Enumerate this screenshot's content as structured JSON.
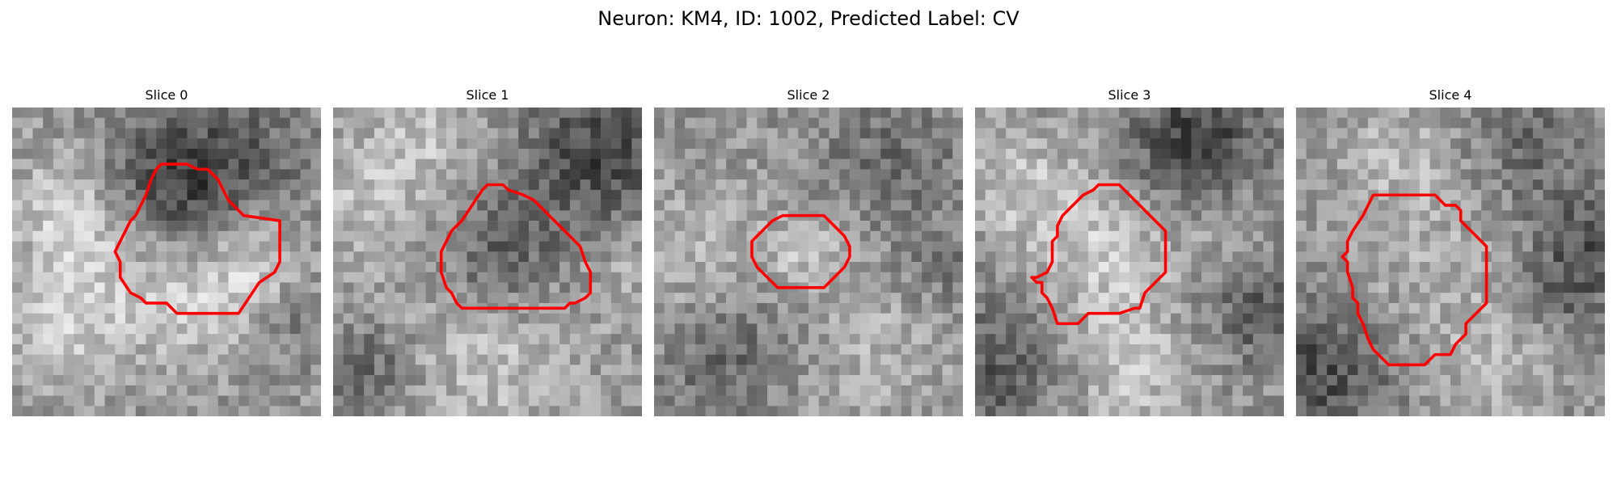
{
  "figure": {
    "title": "Neuron: KM4, ID: 1002, Predicted Label: CV",
    "contour_color": "#ff0000",
    "colormap": "gray",
    "grid_size": 30,
    "slices": [
      {
        "title": "Slice 0",
        "seed": 11
      },
      {
        "title": "Slice 1",
        "seed": 23
      },
      {
        "title": "Slice 2",
        "seed": 37
      },
      {
        "title": "Slice 3",
        "seed": 41
      },
      {
        "title": "Slice 4",
        "seed": 53
      }
    ]
  }
}
